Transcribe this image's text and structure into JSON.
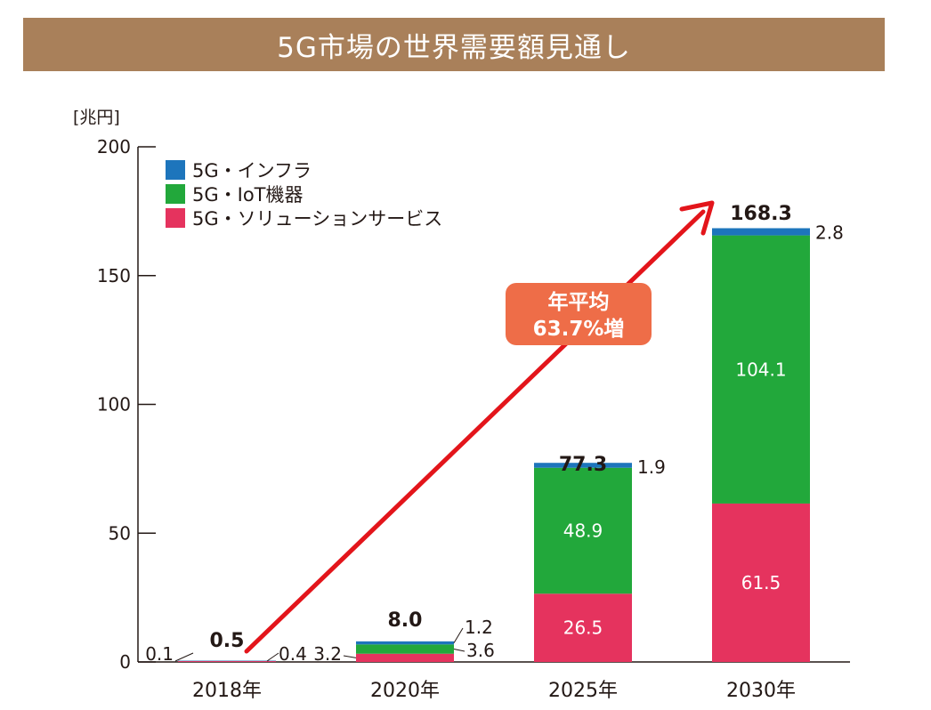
{
  "chart_data": {
    "type": "bar",
    "stacked": true,
    "title": "5G市場の世界需要額見通し",
    "unit_label": "[兆円]",
    "ylim": [
      0,
      200
    ],
    "yticks": [
      "0",
      "50",
      "100",
      "150",
      "200"
    ],
    "categories": [
      "2018年",
      "2020年",
      "2025年",
      "2030年"
    ],
    "series": [
      {
        "name": "5G・ソリューションサービス",
        "color": "#e5335e",
        "values": [
          0.4,
          3.2,
          26.5,
          61.5
        ],
        "labels": [
          "0.4",
          "3.2",
          "26.5",
          "61.5"
        ]
      },
      {
        "name": "5G・IoT機器",
        "color": "#22a83b",
        "values": [
          0.0,
          3.6,
          48.9,
          104.1
        ],
        "labels": [
          "",
          "3.6",
          "48.9",
          "104.1"
        ]
      },
      {
        "name": "5G・インフラ",
        "color": "#1d75bc",
        "values": [
          0.1,
          1.2,
          1.9,
          2.8
        ],
        "labels": [
          "0.1",
          "1.2",
          "1.9",
          "2.8"
        ]
      }
    ],
    "totals": [
      "0.5",
      "8.0",
      "77.3",
      "168.3"
    ],
    "legend_order": [
      "5G・インフラ",
      "5G・IoT機器",
      "5G・ソリューションサービス"
    ],
    "legend_position": "top-left",
    "annotation": {
      "line1": "年平均",
      "line2": "63.7%増",
      "color": "#ee6d48",
      "arrow_color": "#e3151b"
    },
    "grid": false
  }
}
